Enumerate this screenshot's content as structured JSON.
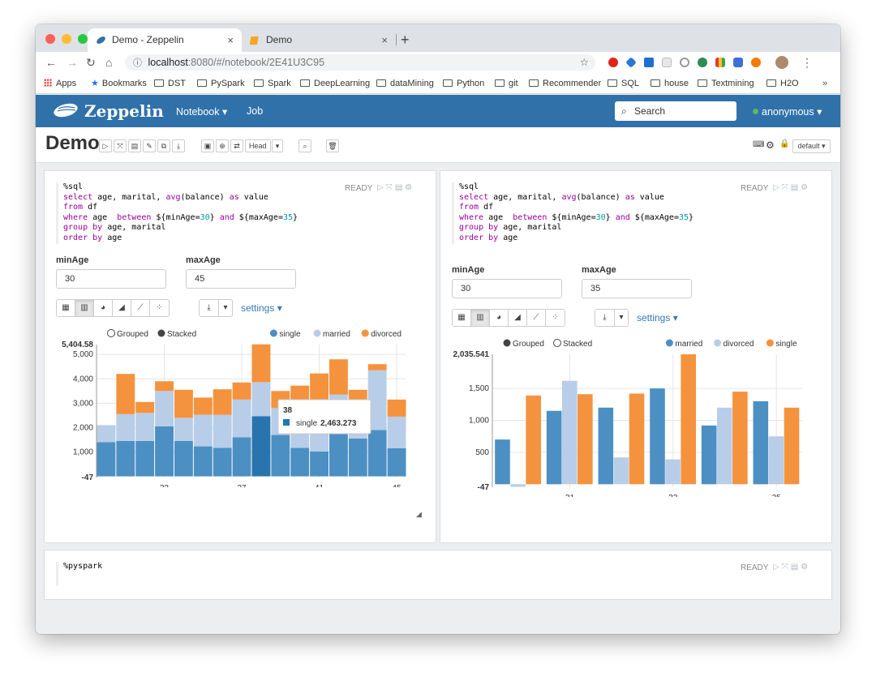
{
  "browser": {
    "tabs": [
      {
        "title": "Demo - Zeppelin",
        "close": "×"
      },
      {
        "title": "Demo",
        "close": "×"
      }
    ],
    "new_tab": "+",
    "url_host": "localhost",
    "url_path": ":8080/#/notebook/2E41U3C95",
    "bookmarks": [
      "Apps",
      "Bookmarks",
      "DST",
      "PySpark",
      "Spark",
      "DeepLearning",
      "dataMining",
      "Python",
      "git",
      "Recommender",
      "SQL",
      "house",
      "Textmining",
      "H2O"
    ],
    "bookmarks_more": "»"
  },
  "zeppelin": {
    "brand": "Zeppelin",
    "menu_notebook": "Notebook ▾",
    "menu_job": "Job",
    "search_placeholder": "Search",
    "user": "anonymous ▾"
  },
  "notebook": {
    "title": "Demo",
    "head_select": "Head",
    "interpreter": "default ▾"
  },
  "paragraphs": [
    {
      "status": "READY",
      "code_lines": [
        "%sql",
        "select age, marital, avg(balance) as value",
        "from df",
        "where age  between ${minAge=30} and ${maxAge=35}",
        "group by age, marital",
        "order by age"
      ],
      "form_labels": [
        "minAge",
        "maxAge"
      ],
      "form_values": [
        "30",
        "45"
      ],
      "settings": "settings ▾",
      "chart_data": {
        "type": "bar",
        "mode": "stacked",
        "radio_labels": [
          "Grouped",
          "Stacked"
        ],
        "legend": [
          "single",
          "married",
          "divorced"
        ],
        "colors": {
          "single": "#4c8fc3",
          "married": "#b7cde8",
          "divorced": "#f5923e"
        },
        "ylim": [
          -47,
          5404.58
        ],
        "ymax_label": "5,404.58",
        "ymin_label": "-47",
        "yticks": [
          "1,000",
          "2,000",
          "3,000",
          "4,000",
          "5,000"
        ],
        "x_tick_labels": [
          "33",
          "37",
          "41",
          "45"
        ],
        "categories": [
          "30",
          "31",
          "32",
          "33",
          "34",
          "35",
          "36",
          "37",
          "38",
          "39",
          "40",
          "41",
          "42",
          "43",
          "44",
          "45"
        ],
        "series": [
          {
            "name": "single",
            "values": [
              1400,
              1450,
              1450,
              2050,
              1450,
              1230,
              1170,
              1600,
              2463,
              1700,
              1170,
              1020,
              1900,
              1550,
              1900,
              1150
            ]
          },
          {
            "name": "married",
            "values": [
              700,
              1100,
              1150,
              1450,
              950,
              1300,
              1350,
              1550,
              1400,
              1100,
              1400,
              1700,
              1450,
              1350,
              2450,
              1300
            ]
          },
          {
            "name": "divorced",
            "values": [
              0,
              1650,
              450,
              400,
              1150,
              700,
              1050,
              700,
              1550,
              700,
              1150,
              1500,
              1450,
              650,
              250,
              700
            ]
          }
        ],
        "tooltip_title": "38",
        "tooltip_series": "single",
        "tooltip_value": "2,463.273"
      }
    },
    {
      "status": "READY",
      "code_lines": [
        "%sql",
        "select age, marital, avg(balance) as value",
        "from df",
        "where age  between ${minAge=30} and ${maxAge=35}",
        "group by age, marital",
        "order by age"
      ],
      "form_labels": [
        "minAge",
        "maxAge"
      ],
      "form_values": [
        "30",
        "35"
      ],
      "settings": "settings ▾",
      "chart_data": {
        "type": "bar",
        "mode": "grouped",
        "radio_labels": [
          "Grouped",
          "Stacked"
        ],
        "legend": [
          "married",
          "divorced",
          "single"
        ],
        "colors": {
          "married": "#4c8fc3",
          "divorced": "#b7cde8",
          "single": "#f5923e"
        },
        "ylim": [
          -47,
          2035.541
        ],
        "ymax_label": "2,035.541",
        "ymin_label": "-47",
        "yticks": [
          "500",
          "1,000",
          "1,500"
        ],
        "x_tick_labels": [
          "31",
          "33",
          "35"
        ],
        "categories": [
          "30",
          "31",
          "32",
          "33",
          "34",
          "35"
        ],
        "series": [
          {
            "name": "married",
            "values": [
              700,
              1150,
              1200,
              1500,
              920,
              1300
            ]
          },
          {
            "name": "divorced",
            "values": [
              -40,
              1620,
              420,
              390,
              1200,
              750
            ]
          },
          {
            "name": "single",
            "values": [
              1390,
              1410,
              1420,
              2035,
              1450,
              1200
            ]
          }
        ]
      }
    },
    {
      "status": "READY",
      "code_lines": [
        "%pyspark"
      ]
    }
  ]
}
